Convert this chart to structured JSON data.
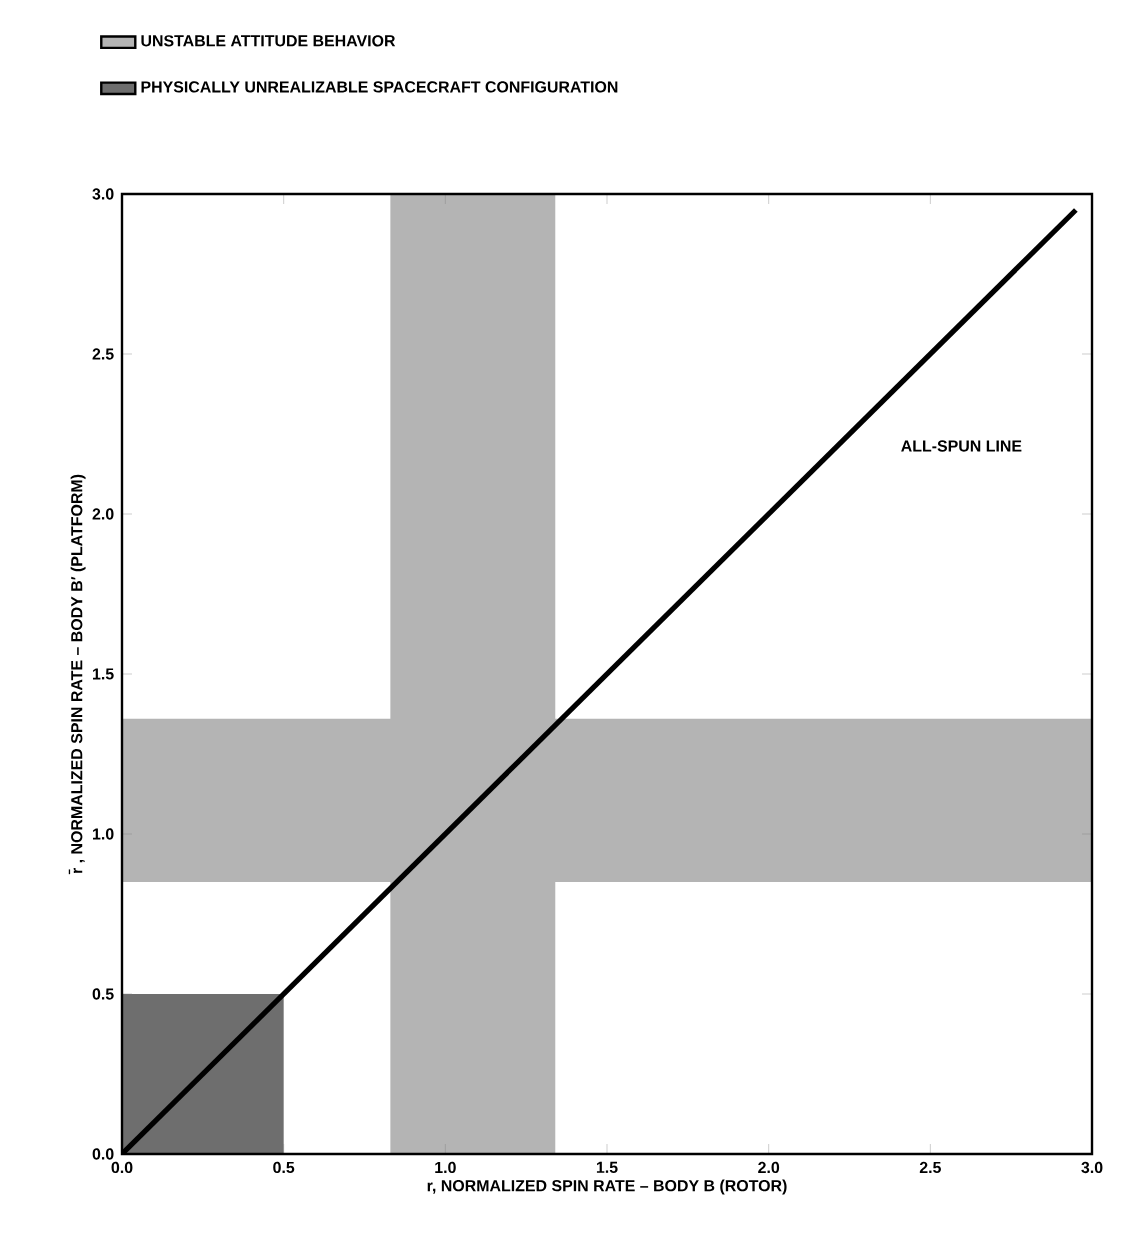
{
  "chart_data": {
    "type": "line",
    "xlabel": "r, NORMALIZED SPIN RATE – BODY B (ROTOR)",
    "ylabel": "r̄ , NORMALIZED SPIN RATE – BODY B′ (PLATFORM)",
    "xlim": [
      0,
      3.0
    ],
    "ylim": [
      0,
      3.0
    ],
    "xticks": [
      {
        "value": 0,
        "label": "0.0"
      },
      {
        "value": 0.5,
        "label": "0.5"
      },
      {
        "value": 1,
        "label": "1.0"
      },
      {
        "value": 1.5,
        "label": "1.5"
      },
      {
        "value": 2,
        "label": "2.0"
      },
      {
        "value": 2.5,
        "label": "2.5"
      },
      {
        "value": 3,
        "label": "3.0"
      }
    ],
    "yticks": [
      {
        "value": 0,
        "label": "0.0"
      },
      {
        "value": 0.5,
        "label": "0.5"
      },
      {
        "value": 1,
        "label": "1.0"
      },
      {
        "value": 1.5,
        "label": "1.5"
      },
      {
        "value": 2,
        "label": "2.0"
      },
      {
        "value": 2.5,
        "label": "2.5"
      },
      {
        "value": 3,
        "label": "3.0"
      }
    ],
    "bands": [
      {
        "axis": "x",
        "from": 0.83,
        "to": 1.34,
        "label": "UNSTABLE ATTITUDE BEHAVIOR",
        "color": "#b4b4b4"
      },
      {
        "axis": "y",
        "from": 0.85,
        "to": 1.36,
        "color": "#b4b4b4"
      }
    ],
    "series": [
      {
        "name": "PHYSICALLY UNREALIZABLE SPACECRAFT CONFIGURATION",
        "type": "area",
        "color": "#6e6e6e",
        "x": [
          0,
          0.5
        ],
        "values": [
          0.5,
          0.5
        ]
      },
      {
        "name": "ALL-SPUN LINE",
        "color": "#000000",
        "x": [
          0,
          2.95
        ],
        "values": [
          0,
          2.95
        ]
      }
    ],
    "legend": "top left",
    "grid": false
  }
}
